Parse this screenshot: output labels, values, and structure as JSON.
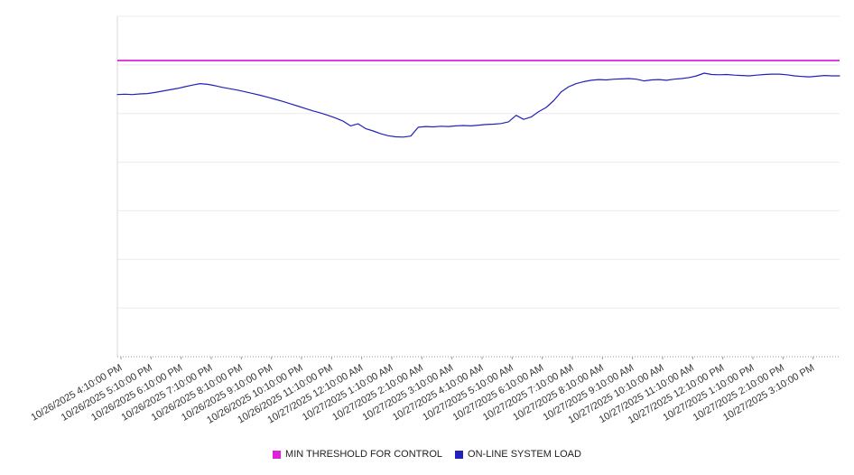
{
  "chart_data": {
    "type": "line",
    "title": "",
    "xlabel": "",
    "ylabel": "",
    "ylim": [
      0,
      100
    ],
    "grid": "horizontal",
    "legend_position": "bottom-center",
    "x_span_hours": 24,
    "x_start_hours": 0,
    "x_step_hours": 0.25,
    "x_tick_offset_hours": 0.12,
    "x_tick_labels": [
      "10/26/2025 4:10:00 PM",
      "10/26/2025 5:10:00 PM",
      "10/26/2025 6:10:00 PM",
      "10/26/2025 7:10:00 PM",
      "10/26/2025 8:10:00 PM",
      "10/26/2025 9:10:00 PM",
      "10/26/2025 10:10:00 PM",
      "10/26/2025 11:10:00 PM",
      "10/27/2025 12:10:00 AM",
      "10/27/2025 1:10:00 AM",
      "10/27/2025 2:10:00 AM",
      "10/27/2025 3:10:00 AM",
      "10/27/2025 4:10:00 AM",
      "10/27/2025 5:10:00 AM",
      "10/27/2025 6:10:00 AM",
      "10/27/2025 7:10:00 AM",
      "10/27/2025 8:10:00 AM",
      "10/27/2025 9:10:00 AM",
      "10/27/2025 10:10:00 AM",
      "10/27/2025 11:10:00 AM",
      "10/27/2025 12:10:00 PM",
      "10/27/2025 1:10:00 PM",
      "10/27/2025 2:10:00 PM",
      "10/27/2025 3:10:00 PM"
    ],
    "series": [
      {
        "name": "MIN THRESHOLD FOR CONTROL",
        "type": "threshold-line",
        "color": "#dd22dd",
        "value": 87.0
      },
      {
        "name": "ON-LINE SYSTEM LOAD",
        "type": "line",
        "color": "#2222bb",
        "values": [
          77.0,
          77.1,
          77.0,
          77.2,
          77.3,
          77.6,
          78.0,
          78.4,
          78.8,
          79.3,
          79.8,
          80.2,
          80.0,
          79.6,
          79.1,
          78.7,
          78.3,
          77.8,
          77.3,
          76.8,
          76.2,
          75.6,
          75.0,
          74.3,
          73.6,
          72.9,
          72.2,
          71.6,
          70.9,
          70.1,
          69.2,
          67.8,
          68.4,
          67.0,
          66.3,
          65.5,
          64.9,
          64.6,
          64.5,
          64.8,
          67.4,
          67.6,
          67.5,
          67.7,
          67.6,
          67.8,
          67.9,
          67.8,
          68.0,
          68.2,
          68.3,
          68.5,
          69.0,
          70.9,
          69.7,
          70.4,
          72.0,
          73.2,
          75.2,
          77.8,
          79.3,
          80.2,
          80.8,
          81.2,
          81.4,
          81.3,
          81.5,
          81.6,
          81.7,
          81.5,
          81.0,
          81.3,
          81.4,
          81.2,
          81.5,
          81.7,
          82.0,
          82.5,
          83.3,
          82.9,
          82.8,
          82.9,
          82.7,
          82.6,
          82.5,
          82.7,
          82.9,
          83.0,
          83.0,
          82.8,
          82.5,
          82.3,
          82.2,
          82.4,
          82.6,
          82.5,
          82.5
        ]
      }
    ],
    "colors": {
      "gridline": "#ececec",
      "y_axis_line": "#d9d9d9",
      "x_axis_dots": "#999999",
      "tick_text": "#333333"
    }
  },
  "legend": {
    "items": [
      {
        "label": "MIN THRESHOLD FOR CONTROL",
        "color": "#dd22dd"
      },
      {
        "label": "ON-LINE SYSTEM LOAD",
        "color": "#2222bb"
      }
    ]
  }
}
